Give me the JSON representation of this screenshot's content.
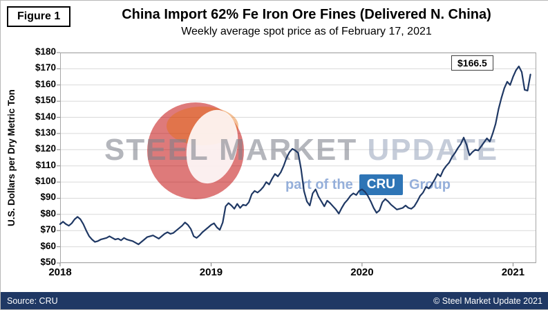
{
  "figure_label": "Figure 1",
  "watermark": {
    "steel": "STEEL",
    "market": "MARKET",
    "update": "UPDATE",
    "part_of": "part of the",
    "cru": "CRU",
    "group": "Group"
  },
  "footer": {
    "source": "Source: CRU",
    "copyright": "© Steel Market Update 2021"
  },
  "colors": {
    "line": "#1f3864",
    "footer_bg": "#1f3864",
    "grid": "#d9d9d9",
    "plot_border": "#a6a6a6",
    "tick": "#808080",
    "logo_red": "#c00000",
    "logo_orange": "#e46c0a",
    "cru_box": "#2e75b6"
  },
  "chart_data": {
    "type": "line",
    "title": "China Import 62% Fe Iron Ore Fines (Delivered N. China)",
    "subtitle": "Weekly average spot price as of February 17, 2021",
    "xlabel": "",
    "ylabel": "U.S. Dollars per Dry Metric Ton",
    "ylim": [
      50,
      180
    ],
    "y_tick_step": 10,
    "y_tick_prefix": "$",
    "y_tick_labels": [
      "$180",
      "$170",
      "$160",
      "$150",
      "$140",
      "$130",
      "$120",
      "$110",
      "$100",
      "$90",
      "$80",
      "$70",
      "$60",
      "$50"
    ],
    "x_ticks": [
      {
        "label": "2018",
        "week": 0
      },
      {
        "label": "2019",
        "week": 52
      },
      {
        "label": "2020",
        "week": 104
      },
      {
        "label": "2021",
        "week": 156
      }
    ],
    "weeks_total": 163,
    "grid": "horizontal",
    "legend": "none",
    "last_value_label": "$166.5",
    "series": [
      {
        "name": "Weekly average spot price (USD/dmt)",
        "values": [
          74,
          75.5,
          74,
          73,
          74.5,
          77,
          78.5,
          77,
          74,
          70,
          66.5,
          64.5,
          63,
          63.5,
          64.5,
          65,
          65.5,
          66.5,
          65.5,
          64.5,
          65,
          64,
          65.5,
          64.5,
          64,
          63.5,
          62.5,
          61.5,
          63,
          64.5,
          66,
          66.5,
          67,
          66,
          65,
          66.5,
          68,
          69,
          68,
          68.5,
          70,
          71.5,
          73,
          75,
          73.5,
          71,
          66.5,
          65.5,
          67,
          69,
          70.5,
          72,
          73.5,
          74.5,
          72,
          70.5,
          75,
          85,
          87,
          85.5,
          83.5,
          86.5,
          84,
          86,
          85.5,
          87.5,
          92.5,
          94.5,
          93.5,
          95,
          97,
          100,
          98.5,
          102,
          105,
          103.5,
          106,
          110,
          115,
          118.5,
          120.5,
          119.5,
          118,
          108,
          94.5,
          88,
          85.5,
          93,
          95.5,
          91,
          88,
          85,
          88.5,
          87,
          85,
          83,
          80.5,
          84,
          87,
          89,
          91.5,
          93,
          92,
          94.5,
          95.5,
          94,
          91.5,
          88,
          84,
          81,
          82.5,
          87.5,
          89.5,
          88,
          86,
          84.5,
          83,
          83.5,
          84,
          85.5,
          84,
          83.5,
          85,
          88,
          91.5,
          93.5,
          97,
          96,
          98.5,
          101.5,
          105,
          103.5,
          107.5,
          110,
          112,
          115.5,
          118,
          121,
          123.5,
          127.5,
          123,
          116.5,
          118.5,
          120,
          119.5,
          122,
          124.5,
          127,
          125,
          130,
          136,
          145,
          152,
          158,
          162,
          160,
          165,
          169,
          171.5,
          168,
          157,
          156.5,
          166.5
        ]
      }
    ]
  }
}
